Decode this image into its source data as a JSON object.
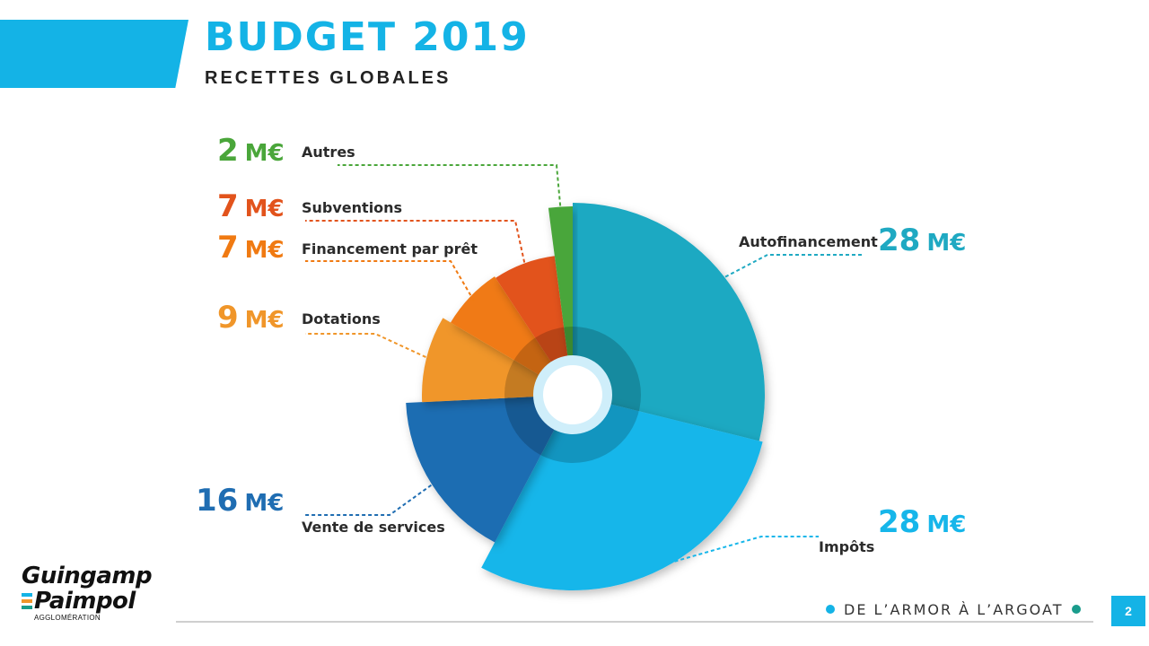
{
  "header": {
    "title": "BUDGET 2019",
    "subtitle": "RECETTES GLOBALES"
  },
  "chart_data": {
    "type": "pie",
    "title": "RECETTES GLOBALES",
    "unit": "M€",
    "slices": [
      {
        "label": "Autofinancement",
        "value": 28,
        "value_text": "28",
        "color": "#1fa9c2"
      },
      {
        "label": "Impôts",
        "value": 28,
        "value_text": "28",
        "color": "#16b6ea"
      },
      {
        "label": "Vente de services",
        "value": 16,
        "value_text": "16",
        "color": "#1f6db2"
      },
      {
        "label": "Dotations",
        "value": 9,
        "value_text": "9",
        "color": "#f0962a"
      },
      {
        "label": "Financement par prêt",
        "value": 7,
        "value_text": "7",
        "color": "#f07a12"
      },
      {
        "label": "Subventions",
        "value": 7,
        "value_text": "7",
        "color": "#e2531c"
      },
      {
        "label": "Autres",
        "value": 2,
        "value_text": "2",
        "color": "#4aa63a"
      }
    ]
  },
  "logo": {
    "line1": "Guingamp",
    "line2": "Paimpol",
    "line3": "AGGLOMÉRATION"
  },
  "footer": {
    "tagline": "DE L’ARMOR À L’ARGOAT",
    "page": "2",
    "dot_left": "#14b3e6",
    "dot_right": "#1a9c8c"
  }
}
